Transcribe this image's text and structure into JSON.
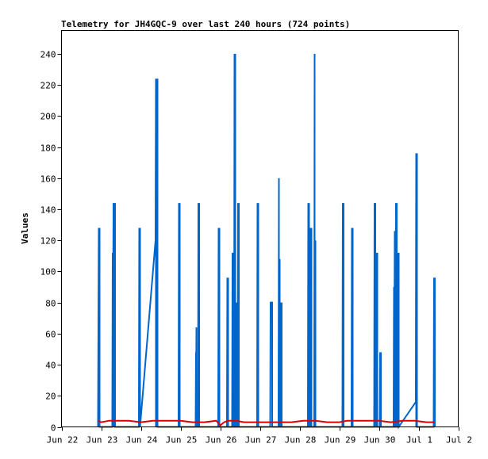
{
  "chart_data": {
    "type": "line",
    "title": "Telemetry for JH4GQC-9 over last 240 hours (724 points)",
    "xlabel": "",
    "ylabel": "Values",
    "xlim": [
      0,
      10
    ],
    "ylim": [
      0,
      255
    ],
    "grid": false,
    "x_tick_labels": [
      "Jun 22",
      "Jun 23",
      "Jun 24",
      "Jun 25",
      "Jun 26",
      "Jun 27",
      "Jun 28",
      "Jun 29",
      "Jun 30",
      "Jul 1",
      "Jul 2"
    ],
    "x_tick_positions": [
      0,
      1,
      2,
      3,
      4,
      5,
      6,
      7,
      8,
      9,
      10
    ],
    "y_tick_values": [
      0,
      20,
      40,
      60,
      80,
      100,
      120,
      140,
      160,
      180,
      200,
      220,
      240
    ],
    "series": [
      {
        "color": "#0066cc",
        "x": [
          0.92,
          0.94,
          0.94,
          0.96,
          0.96,
          1.28,
          1.29,
          1.29,
          1.31,
          1.31,
          1.33,
          1.33,
          1.35,
          1.35,
          1.95,
          1.96,
          1.96,
          1.98,
          1.98,
          2.37,
          2.38,
          2.38,
          2.39,
          2.39,
          2.4,
          2.4,
          2.42,
          2.42,
          2.95,
          2.96,
          2.96,
          2.98,
          2.98,
          3.38,
          3.39,
          3.39,
          3.4,
          3.4,
          3.44,
          3.45,
          3.45,
          3.47,
          3.47,
          3.95,
          3.96,
          3.96,
          3.98,
          3.98,
          4.17,
          4.18,
          4.18,
          4.2,
          4.2,
          4.3,
          4.31,
          4.31,
          4.33,
          4.33,
          4.35,
          4.36,
          4.36,
          4.38,
          4.38,
          4.4,
          4.41,
          4.41,
          4.43,
          4.43,
          4.44,
          4.45,
          4.45,
          4.47,
          4.47,
          4.93,
          4.94,
          4.94,
          4.96,
          4.96,
          5.26,
          5.27,
          5.27,
          5.31,
          5.31,
          5.47,
          5.48,
          5.48,
          5.5,
          5.5,
          5.52,
          5.53,
          5.53,
          5.55,
          5.55,
          6.21,
          6.22,
          6.22,
          6.24,
          6.24,
          6.27,
          6.28,
          6.28,
          6.3,
          6.3,
          6.37,
          6.38,
          6.38,
          6.4,
          6.4,
          7.08,
          7.09,
          7.09,
          7.11,
          7.11,
          7.31,
          7.32,
          7.32,
          7.34,
          7.34,
          7.88,
          7.89,
          7.89,
          7.91,
          7.91,
          7.93,
          7.94,
          7.94,
          7.96,
          7.96,
          8.02,
          8.03,
          8.03,
          8.05,
          8.05,
          8.37,
          8.38,
          8.38,
          8.4,
          8.4,
          8.42,
          8.43,
          8.43,
          8.45,
          8.45,
          8.47,
          8.48,
          8.48,
          8.5,
          8.5,
          8.93,
          8.94,
          8.94,
          8.96,
          8.96,
          9.38,
          9.39,
          9.39,
          9.41,
          9.41
        ],
        "y": [
          0,
          128,
          0,
          128,
          0,
          0,
          112,
          0,
          144,
          0,
          144,
          0,
          144,
          0,
          0,
          128,
          0,
          128,
          0,
          120,
          224,
          0,
          224,
          0,
          224,
          0,
          224,
          0,
          0,
          144,
          0,
          144,
          0,
          0,
          48,
          0,
          64,
          0,
          0,
          144,
          0,
          144,
          0,
          0,
          128,
          0,
          128,
          0,
          0,
          96,
          0,
          96,
          0,
          0,
          112,
          0,
          112,
          0,
          0,
          240,
          0,
          240,
          0,
          0,
          80,
          0,
          80,
          0,
          0,
          144,
          0,
          144,
          0,
          0,
          144,
          0,
          144,
          0,
          0,
          80,
          80,
          80,
          0,
          0,
          160,
          0,
          108,
          0,
          0,
          80,
          0,
          80,
          0,
          0,
          144,
          0,
          144,
          0,
          0,
          128,
          0,
          128,
          0,
          0,
          240,
          0,
          120,
          0,
          0,
          144,
          0,
          144,
          0,
          0,
          128,
          0,
          128,
          0,
          0,
          144,
          0,
          144,
          0,
          0,
          112,
          0,
          112,
          0,
          0,
          48,
          0,
          48,
          0,
          0,
          90,
          0,
          126,
          0,
          0,
          144,
          0,
          144,
          0,
          0,
          112,
          0,
          112,
          0,
          16,
          176,
          0,
          176,
          0,
          0,
          96,
          0,
          96,
          0
        ]
      },
      {
        "color": "#dd0000",
        "x": [
          0.92,
          1.0,
          1.2,
          1.4,
          1.7,
          2.0,
          2.3,
          2.6,
          3.0,
          3.3,
          3.6,
          3.9,
          4.0,
          4.1,
          4.2,
          4.4,
          4.6,
          4.9,
          5.2,
          5.5,
          5.8,
          6.1,
          6.4,
          6.7,
          7.0,
          7.2,
          7.4,
          7.7,
          8.0,
          8.3,
          8.6,
          8.9,
          9.2,
          9.41
        ],
        "y": [
          4,
          3,
          4,
          4,
          4,
          3,
          4,
          4,
          4,
          3,
          3,
          4,
          1,
          3,
          4,
          4,
          3,
          3,
          3,
          3,
          3,
          4,
          4,
          3,
          3,
          4,
          4,
          4,
          4,
          3,
          4,
          4,
          3,
          3
        ]
      },
      {
        "color": "#000000",
        "x": [
          0.92,
          9.41
        ],
        "y": [
          0,
          0
        ]
      }
    ]
  }
}
